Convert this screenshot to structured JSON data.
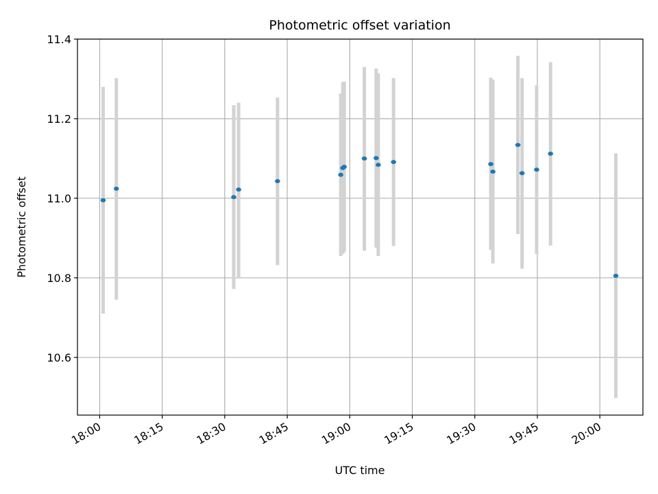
{
  "chart_data": {
    "type": "scatter",
    "title": "Photometric offset variation",
    "xlabel": "UTC time",
    "ylabel": "Photometric offset",
    "x_tick_labels": [
      "18:00",
      "18:15",
      "18:30",
      "18:45",
      "19:00",
      "19:15",
      "19:30",
      "19:45",
      "20:00"
    ],
    "y_ticks": [
      10.6,
      10.8,
      11.0,
      11.2,
      11.4
    ],
    "y_tick_labels": [
      "10.6",
      "10.8",
      "11.0",
      "11.2",
      "11.4"
    ],
    "xlim": [
      "17:54:40",
      "20:10:20"
    ],
    "ylim": [
      10.455,
      11.4
    ],
    "grid": true,
    "errorbar_color": "#d3d3d3",
    "marker_color": "#1f77b4",
    "points": [
      {
        "x": "18:00:50",
        "y": 10.995,
        "ylow": 10.71,
        "yhigh": 11.28
      },
      {
        "x": "18:04:00",
        "y": 11.024,
        "ylow": 10.745,
        "yhigh": 11.302
      },
      {
        "x": "18:32:10",
        "y": 11.003,
        "ylow": 10.772,
        "yhigh": 11.234
      },
      {
        "x": "18:33:20",
        "y": 11.022,
        "ylow": 10.8,
        "yhigh": 11.24
      },
      {
        "x": "18:42:40",
        "y": 11.043,
        "ylow": 10.832,
        "yhigh": 11.253
      },
      {
        "x": "18:57:50",
        "y": 11.059,
        "ylow": 10.855,
        "yhigh": 11.263
      },
      {
        "x": "18:58:20",
        "y": 11.076,
        "ylow": 10.86,
        "yhigh": 11.292
      },
      {
        "x": "18:58:40",
        "y": 11.079,
        "ylow": 10.865,
        "yhigh": 11.293
      },
      {
        "x": "19:03:30",
        "y": 11.1,
        "ylow": 10.868,
        "yhigh": 11.33
      },
      {
        "x": "19:06:20",
        "y": 11.101,
        "ylow": 10.876,
        "yhigh": 11.326
      },
      {
        "x": "19:06:50",
        "y": 11.084,
        "ylow": 10.855,
        "yhigh": 11.314
      },
      {
        "x": "19:10:30",
        "y": 11.091,
        "ylow": 10.88,
        "yhigh": 11.302
      },
      {
        "x": "19:33:50",
        "y": 11.086,
        "ylow": 10.87,
        "yhigh": 11.303
      },
      {
        "x": "19:34:20",
        "y": 11.067,
        "ylow": 10.836,
        "yhigh": 11.298
      },
      {
        "x": "19:40:20",
        "y": 11.134,
        "ylow": 10.91,
        "yhigh": 11.358
      },
      {
        "x": "19:41:20",
        "y": 11.063,
        "ylow": 10.823,
        "yhigh": 11.302
      },
      {
        "x": "19:44:50",
        "y": 11.072,
        "ylow": 10.86,
        "yhigh": 11.284
      },
      {
        "x": "19:48:10",
        "y": 11.112,
        "ylow": 10.881,
        "yhigh": 11.342
      },
      {
        "x": "20:03:50",
        "y": 10.805,
        "ylow": 10.498,
        "yhigh": 11.113
      }
    ]
  }
}
